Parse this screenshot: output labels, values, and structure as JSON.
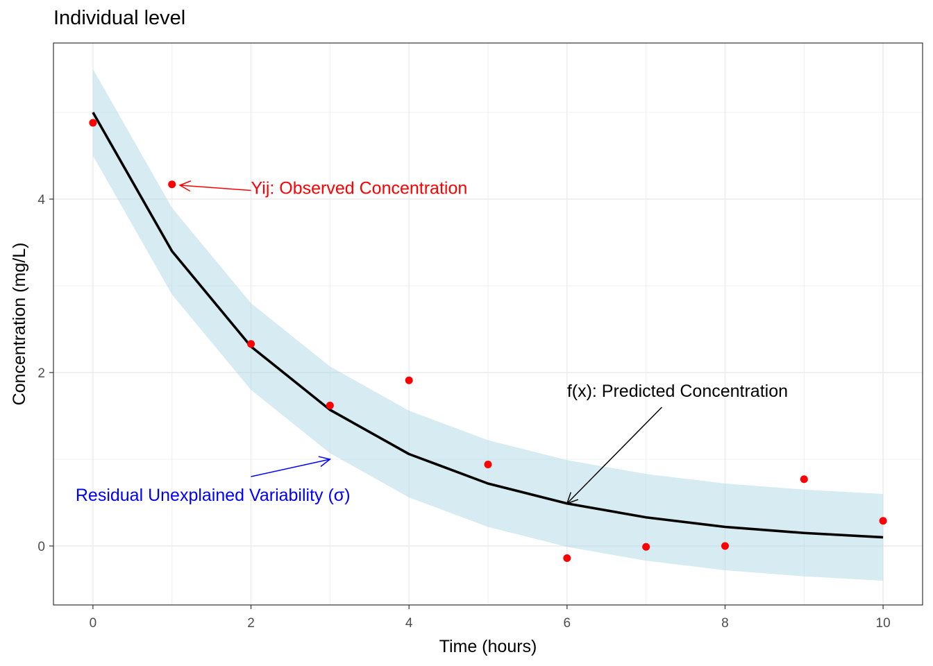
{
  "chart_data": {
    "type": "line",
    "title": "Individual level",
    "xlabel": "Time (hours)",
    "ylabel": "Concentration (mg/L)",
    "xlim": [
      -0.5,
      10.5
    ],
    "ylim": [
      -0.68,
      5.8
    ],
    "x_ticks": [
      0,
      2,
      4,
      6,
      8,
      10
    ],
    "y_ticks": [
      0,
      2,
      4
    ],
    "grid": true,
    "predicted": {
      "x": [
        0,
        1,
        2,
        3,
        4,
        5,
        6,
        7,
        8,
        9,
        10
      ],
      "y": [
        5.0,
        3.4,
        2.3,
        1.57,
        1.06,
        0.72,
        0.49,
        0.33,
        0.22,
        0.15,
        0.1
      ],
      "color": "#000000"
    },
    "band": {
      "x": [
        0,
        1,
        2,
        3,
        4,
        5,
        6,
        7,
        8,
        9,
        10
      ],
      "lower": [
        4.5,
        2.9,
        1.8,
        1.07,
        0.56,
        0.22,
        -0.01,
        -0.17,
        -0.28,
        -0.35,
        -0.4
      ],
      "upper": [
        5.5,
        3.9,
        2.8,
        2.07,
        1.56,
        1.22,
        0.99,
        0.83,
        0.72,
        0.65,
        0.6
      ],
      "color": "#add8e6"
    },
    "observed": {
      "x": [
        0,
        1,
        2,
        3,
        4,
        5,
        6,
        7,
        8,
        9,
        10
      ],
      "y": [
        4.88,
        4.17,
        2.33,
        1.62,
        1.91,
        0.94,
        -0.14,
        -0.01,
        0.0,
        0.77,
        0.29
      ],
      "color": "#ff0000"
    },
    "annotations": [
      {
        "text": "Yij: Observed Concentration",
        "color": "#ff0000",
        "text_x": 2.0,
        "text_y": 4.06,
        "arrow_from": [
          2.0,
          4.1
        ],
        "arrow_to": [
          1.1,
          4.16
        ]
      },
      {
        "text": "f(x): Predicted Concentration",
        "color": "#000000",
        "text_x": 6.0,
        "text_y": 1.72,
        "arrow_from": [
          7.2,
          1.6
        ],
        "arrow_to": [
          6.0,
          0.49
        ]
      },
      {
        "text": "Residual Unexplained Variability (σ)",
        "color": "#0000ff",
        "text_x": -0.22,
        "text_y": 0.52,
        "arrow_from": [
          2.0,
          0.8
        ],
        "arrow_to": [
          3.0,
          1.0
        ]
      }
    ]
  }
}
